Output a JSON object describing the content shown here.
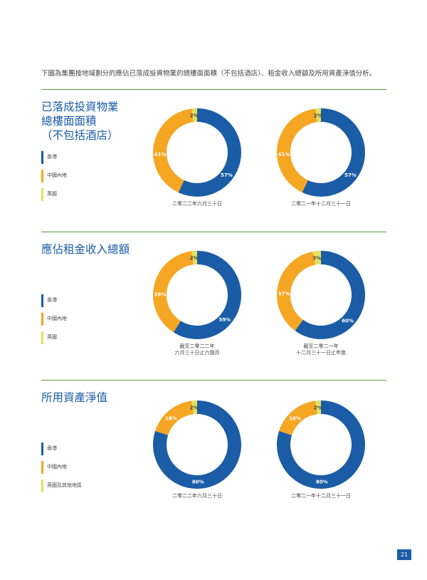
{
  "intro": "下圖為集團按地域劃分的應佔已落成投資物業的總樓面面積（不包括酒店）、租金收入總額及所用資產淨值分析。",
  "colors": {
    "hk": "#1b5ca6",
    "mainland": "#f5a623",
    "uk": "#e3e063",
    "rule": "#5f9a3a"
  },
  "page_number": "21",
  "sections": [
    {
      "title": "已落成投資物業\n總樓面面積\n（不包括酒店）",
      "legend": [
        "香港",
        "中國內地",
        "英國"
      ]
    },
    {
      "title": "應佔租金收入總額",
      "legend": [
        "香港",
        "中國內地",
        "英國"
      ]
    },
    {
      "title": "所用資產淨值",
      "legend": [
        "香港",
        "中國內地",
        "英國及其他地區"
      ]
    }
  ],
  "chart_data": [
    {
      "type": "pie",
      "categories": [
        "香港",
        "中國內地",
        "英國"
      ],
      "values": [
        57,
        41,
        2
      ],
      "labels": [
        "57%",
        "41%",
        "2%"
      ],
      "caption": [
        "二零二二年六月三十日"
      ]
    },
    {
      "type": "pie",
      "categories": [
        "香港",
        "中國內地",
        "英國"
      ],
      "values": [
        57,
        41,
        2
      ],
      "labels": [
        "57%",
        "41%",
        "2%"
      ],
      "caption": [
        "二零二一年十二月三十一日"
      ]
    },
    {
      "type": "pie",
      "categories": [
        "香港",
        "中國內地",
        "英國"
      ],
      "values": [
        59,
        39,
        2
      ],
      "labels": [
        "59%",
        "39%",
        "2%"
      ],
      "caption": [
        "截至二零二二年",
        "六月三十日止六個月"
      ]
    },
    {
      "type": "pie",
      "categories": [
        "香港",
        "中國內地",
        "英國"
      ],
      "values": [
        60,
        37,
        3
      ],
      "labels": [
        "60%",
        "37%",
        "3%"
      ],
      "caption": [
        "截至二零二一年",
        "十二月三十一日止年度"
      ]
    },
    {
      "type": "pie",
      "categories": [
        "香港",
        "中國內地",
        "英國及其他地區"
      ],
      "values": [
        80,
        18,
        2
      ],
      "labels": [
        "80%",
        "18%",
        "2%"
      ],
      "caption": [
        "二零二二年六月三十日"
      ]
    },
    {
      "type": "pie",
      "categories": [
        "香港",
        "中國內地",
        "英國及其他地區"
      ],
      "values": [
        80,
        18,
        2
      ],
      "labels": [
        "80%",
        "18%",
        "2%"
      ],
      "caption": [
        "二零二一年十二月三十一日"
      ]
    }
  ]
}
